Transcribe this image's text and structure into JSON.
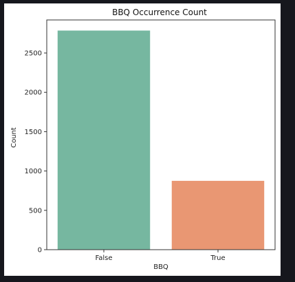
{
  "chart_data": {
    "type": "bar",
    "title": "BBQ Occurrence Count",
    "xlabel": "BBQ",
    "ylabel": "Count",
    "categories": [
      "False",
      "True"
    ],
    "values": [
      2785,
      875
    ],
    "colors": [
      "#76b7a0",
      "#e99773"
    ],
    "ylim": [
      0,
      2920
    ],
    "yticks": [
      0,
      500,
      1000,
      1500,
      2000,
      2500
    ],
    "grid": false,
    "legend": "none"
  }
}
